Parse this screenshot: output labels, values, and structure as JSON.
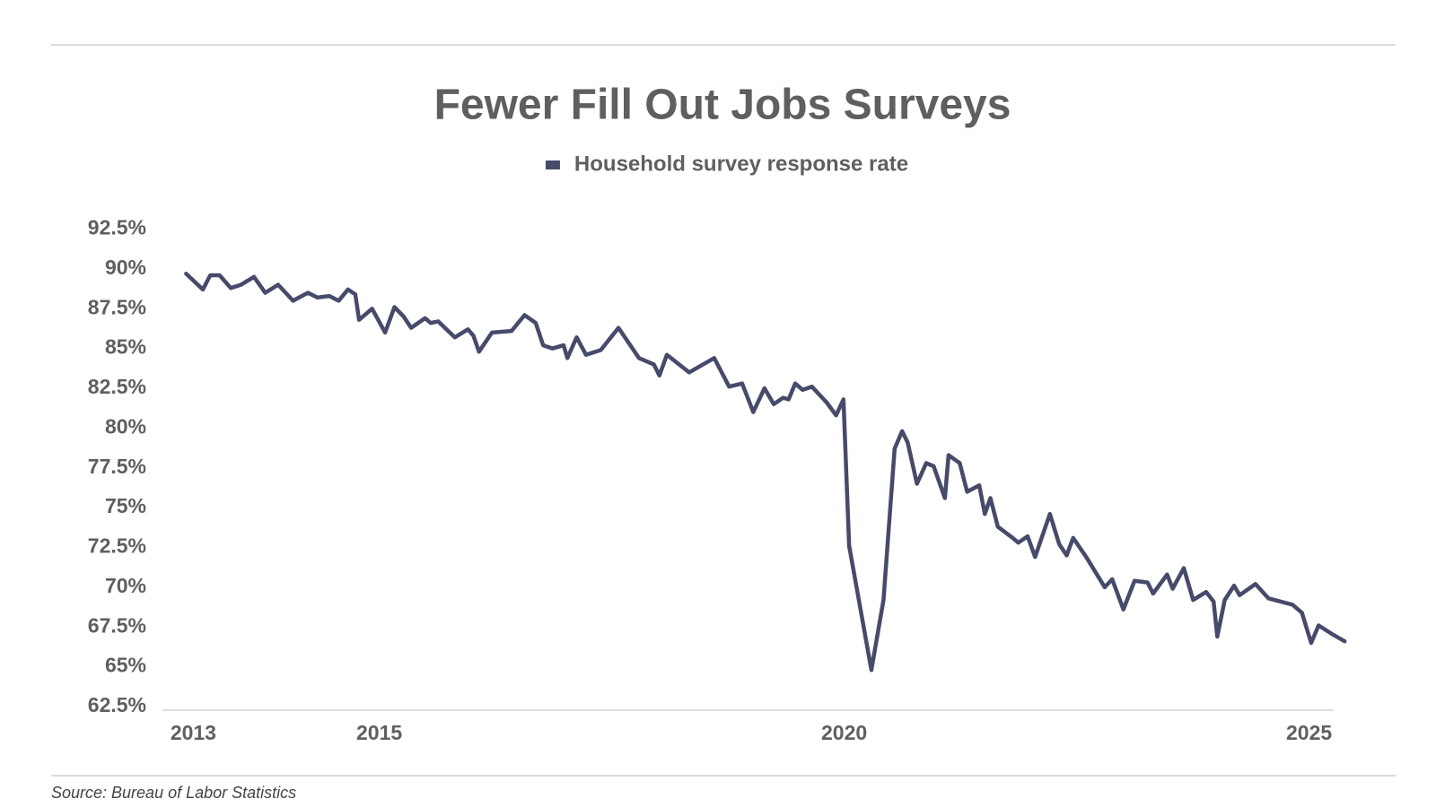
{
  "chart_data": {
    "type": "line",
    "title": "Fewer Fill Out Jobs Surveys",
    "source": "Source: Bureau of Labor Statistics",
    "legend": "top",
    "grid": false,
    "xlim": [
      2012.75,
      2025.34
    ],
    "xticks": [
      2013,
      2015,
      2020,
      2025
    ],
    "ylim": [
      62.5,
      92.5
    ],
    "yticks": [
      {
        "value": 62.5,
        "label": "62.5%"
      },
      {
        "value": 65,
        "label": "65%"
      },
      {
        "value": 67.5,
        "label": "67.5%"
      },
      {
        "value": 70,
        "label": "70%"
      },
      {
        "value": 72.5,
        "label": "72.5%"
      },
      {
        "value": 75,
        "label": "75%"
      },
      {
        "value": 77.5,
        "label": "77.5%"
      },
      {
        "value": 80,
        "label": "80%"
      },
      {
        "value": 82.5,
        "label": "82.5%"
      },
      {
        "value": 85,
        "label": "85%"
      },
      {
        "value": 87.5,
        "label": "87.5%"
      },
      {
        "value": 90,
        "label": "90%"
      },
      {
        "value": 92.5,
        "label": "92.5%"
      }
    ],
    "x": [
      2013.0,
      2013.18,
      2013.26,
      2013.36,
      2013.48,
      2013.59,
      2013.73,
      2013.85,
      2013.99,
      2014.15,
      2014.31,
      2014.41,
      2014.54,
      2014.64,
      2014.74,
      2014.82,
      2014.86,
      2015.0,
      2015.14,
      2015.24,
      2015.34,
      2015.42,
      2015.57,
      2015.63,
      2015.71,
      2015.89,
      2016.03,
      2016.09,
      2016.15,
      2016.29,
      2016.5,
      2016.64,
      2016.76,
      2016.84,
      2016.94,
      2017.06,
      2017.1,
      2017.2,
      2017.3,
      2017.46,
      2017.65,
      2017.87,
      2018.03,
      2018.09,
      2018.17,
      2018.41,
      2018.68,
      2018.84,
      2018.98,
      2019.1,
      2019.22,
      2019.32,
      2019.42,
      2019.48,
      2019.55,
      2019.63,
      2019.73,
      2019.89,
      2019.99,
      2020.07,
      2020.13,
      2020.25,
      2020.37,
      2020.5,
      2020.62,
      2020.7,
      2020.76,
      2020.86,
      2020.96,
      2021.04,
      2021.16,
      2021.2,
      2021.32,
      2021.4,
      2021.53,
      2021.59,
      2021.65,
      2021.73,
      2021.89,
      2021.95,
      2022.05,
      2022.13,
      2022.29,
      2022.39,
      2022.47,
      2022.54,
      2022.68,
      2022.88,
      2022.96,
      2023.08,
      2023.2,
      2023.34,
      2023.4,
      2023.55,
      2023.61,
      2023.73,
      2023.83,
      2023.97,
      2024.05,
      2024.09,
      2024.17,
      2024.27,
      2024.33,
      2024.5,
      2024.64,
      2024.9,
      2025.0,
      2025.1,
      2025.18,
      2025.34,
      2025.46
    ],
    "series": [
      {
        "name": "Household survey response rate",
        "color": "#464a6b",
        "values": [
          89.7,
          88.7,
          89.6,
          89.6,
          88.8,
          89.0,
          89.5,
          88.5,
          89.0,
          88.0,
          88.5,
          88.2,
          88.3,
          88.0,
          88.7,
          88.4,
          86.8,
          87.5,
          86.0,
          87.6,
          87.0,
          86.3,
          86.9,
          86.6,
          86.7,
          85.7,
          86.2,
          85.8,
          84.8,
          86.0,
          86.1,
          87.1,
          86.6,
          85.2,
          85.0,
          85.2,
          84.4,
          85.7,
          84.6,
          84.9,
          86.3,
          84.4,
          84.0,
          83.3,
          84.6,
          83.5,
          84.4,
          82.6,
          82.8,
          81.0,
          82.5,
          81.5,
          81.9,
          81.8,
          82.8,
          82.4,
          82.6,
          81.6,
          80.8,
          81.8,
          72.6,
          68.7,
          64.8,
          69.2,
          78.7,
          79.8,
          79.1,
          76.5,
          77.8,
          77.6,
          75.6,
          78.3,
          77.8,
          76.0,
          76.4,
          74.6,
          75.6,
          73.8,
          73.1,
          72.8,
          73.2,
          71.9,
          74.6,
          72.7,
          72.0,
          73.1,
          71.9,
          70.0,
          70.5,
          68.6,
          70.4,
          70.3,
          69.6,
          70.8,
          69.9,
          71.2,
          69.2,
          69.7,
          69.1,
          66.9,
          69.2,
          70.1,
          69.5,
          70.2,
          69.3,
          68.9,
          68.4,
          66.5,
          67.6,
          67.0,
          66.6
        ]
      }
    ]
  }
}
